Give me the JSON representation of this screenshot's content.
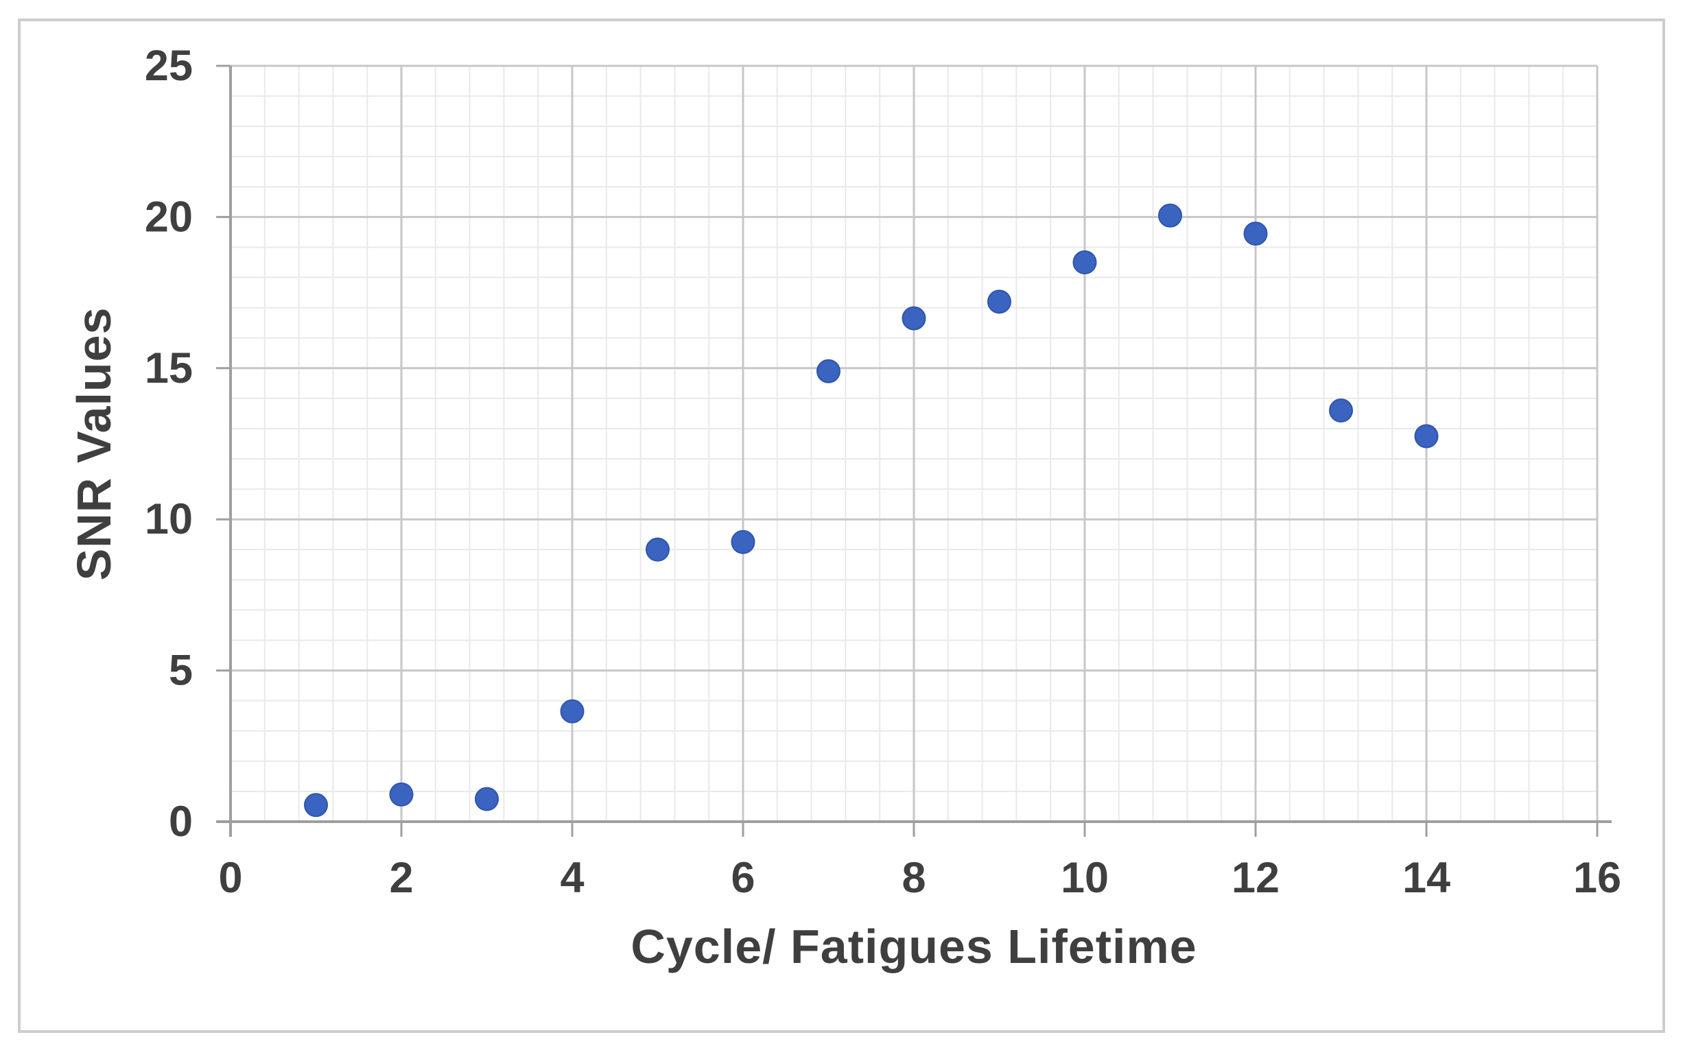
{
  "chart_data": {
    "type": "scatter",
    "title": "",
    "xlabel": "Cycle/ Fatigues Lifetime",
    "ylabel": "SNR Values",
    "x": [
      1,
      2,
      3,
      4,
      5,
      6,
      7,
      8,
      9,
      10,
      11,
      12,
      13,
      14
    ],
    "y": [
      0.55,
      0.9,
      0.75,
      3.65,
      9.0,
      9.25,
      14.9,
      16.65,
      17.2,
      18.5,
      20.05,
      19.45,
      13.6,
      12.75
    ],
    "xlim": [
      0,
      16
    ],
    "ylim": [
      0,
      25
    ],
    "x_ticks": [
      0,
      2,
      4,
      6,
      8,
      10,
      12,
      14,
      16
    ],
    "y_ticks": [
      0,
      5,
      10,
      15,
      20,
      25
    ],
    "x_minor_step": 0.4,
    "y_minor_step": 1,
    "grid": "major+minor",
    "legend": "none"
  },
  "colors": {
    "marker": "#3b64c1",
    "marker_edge": "#2e55ad",
    "grid_major": "#c7c7c7",
    "grid_minor": "#e9e9e9",
    "axis_line": "#9f9f9f",
    "tick_text": "#3f3f3f",
    "frame_border": "#cdcdcd",
    "background": "#ffffff"
  }
}
